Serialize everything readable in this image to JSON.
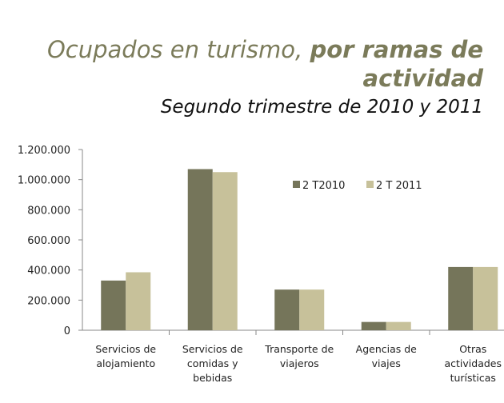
{
  "title_part1": "Ocupados en turismo, ",
  "title_part2": "por ramas de actividad",
  "subtitle": "Segundo trimestre de 2010 y 2011",
  "colors": {
    "series1": "#75755a",
    "series2": "#c7c19a",
    "title": "#7b7b5a"
  },
  "chart_data": {
    "type": "bar",
    "categories": [
      [
        "Servicios de",
        "alojamiento"
      ],
      [
        "Servicios de",
        "comidas y",
        "bebidas"
      ],
      [
        "Transporte de",
        "viajeros"
      ],
      [
        "Agencias de",
        "viajes"
      ],
      [
        "Otras",
        "actividades",
        "turísticas"
      ]
    ],
    "series": [
      {
        "name": "2 T2010",
        "values": [
          330000,
          1070000,
          270000,
          55000,
          420000
        ]
      },
      {
        "name": "2 T 2011",
        "values": [
          385000,
          1050000,
          270000,
          55000,
          420000
        ]
      }
    ],
    "yticks": [
      "0",
      "200.000",
      "400.000",
      "600.000",
      "800.000",
      "1.000.000",
      "1.200.000"
    ],
    "ylim": [
      0,
      1200000
    ],
    "legend_position": "top-right",
    "grid": false
  }
}
